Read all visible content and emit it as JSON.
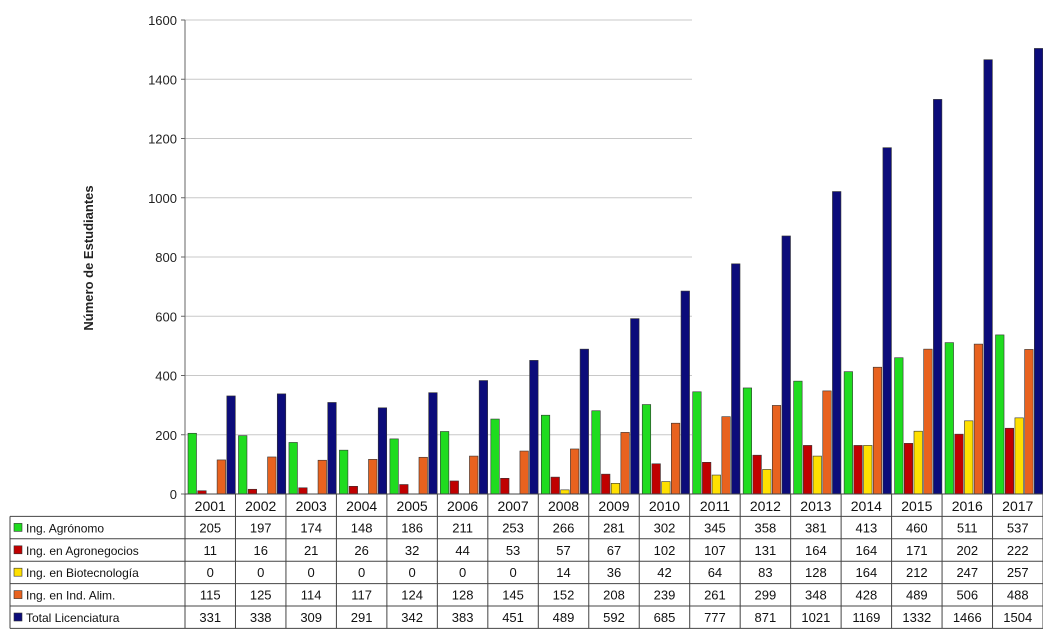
{
  "chart_data": {
    "type": "bar",
    "ylabel": "Número de Estudiantes",
    "ylim": [
      0,
      1600
    ],
    "yticks": [
      0,
      200,
      400,
      600,
      800,
      1000,
      1200,
      1400,
      1600
    ],
    "grid": true,
    "legend": "table-left",
    "categories": [
      "2001",
      "2002",
      "2003",
      "2004",
      "2005",
      "2006",
      "2007",
      "2008",
      "2009",
      "2010",
      "2011",
      "2012",
      "2013",
      "2014",
      "2015",
      "2016",
      "2017"
    ],
    "series": [
      {
        "name": "Ing. Agrónomo",
        "color": "#1fdc1f",
        "values": [
          205,
          197,
          174,
          148,
          186,
          211,
          253,
          266,
          281,
          302,
          345,
          358,
          381,
          413,
          460,
          511,
          537
        ]
      },
      {
        "name": "Ing. en Agronegocios",
        "color": "#c00000",
        "values": [
          11,
          16,
          21,
          26,
          32,
          44,
          53,
          57,
          67,
          102,
          107,
          131,
          164,
          164,
          171,
          202,
          222
        ]
      },
      {
        "name": "Ing. en Biotecnología",
        "color": "#ffe000",
        "values": [
          0,
          0,
          0,
          0,
          0,
          0,
          0,
          14,
          36,
          42,
          64,
          83,
          128,
          164,
          212,
          247,
          257
        ]
      },
      {
        "name": "Ing. en Ind. Alim.",
        "color": "#e8621f",
        "values": [
          115,
          125,
          114,
          117,
          124,
          128,
          145,
          152,
          208,
          239,
          261,
          299,
          348,
          428,
          489,
          506,
          488
        ]
      },
      {
        "name": "Total Licenciatura",
        "color": "#0c0c7a",
        "values": [
          331,
          338,
          309,
          291,
          342,
          383,
          451,
          489,
          592,
          685,
          777,
          871,
          1021,
          1169,
          1332,
          1466,
          1504
        ]
      }
    ]
  }
}
